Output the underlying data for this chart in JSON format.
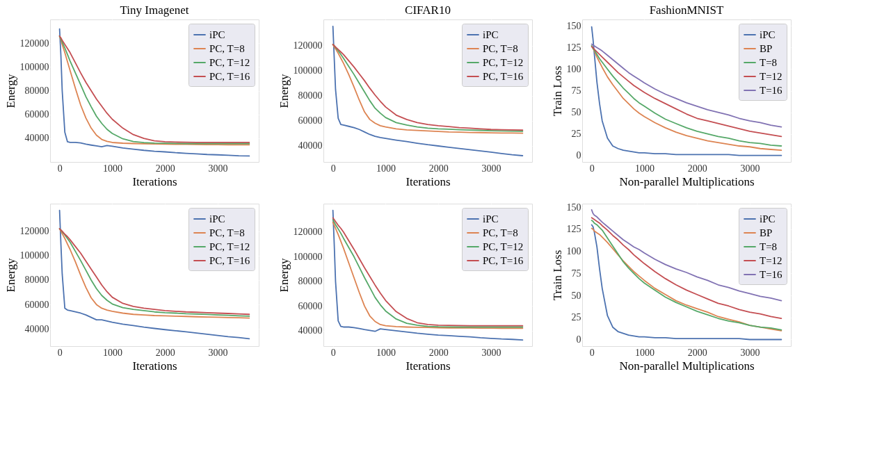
{
  "chart_data": [
    {
      "type": "line",
      "title": "Tiny Imagenet",
      "xlabel": "Iterations",
      "ylabel": "Energy",
      "grid": true,
      "legend": "top right",
      "line_style": "solid",
      "x": [
        0,
        25,
        50,
        100,
        150,
        200,
        300,
        400,
        500,
        600,
        700,
        800,
        900,
        1000,
        1200,
        1400,
        1600,
        1800,
        2000,
        2200,
        2400,
        2600,
        2800,
        3000,
        3200,
        3400,
        3600
      ],
      "xlim": [
        -180,
        3780
      ],
      "xticks": [
        0,
        1000,
        2000,
        3000
      ],
      "ylim": [
        20000,
        140000
      ],
      "yticks": [
        40000,
        60000,
        80000,
        100000,
        120000
      ],
      "series": [
        {
          "name": "iPC",
          "color": "#4c72b0",
          "values": [
            132000,
            110000,
            80000,
            45000,
            37000,
            36500,
            36500,
            36000,
            35000,
            34200,
            33500,
            32800,
            33800,
            33200,
            31800,
            30800,
            29800,
            29000,
            28500,
            27800,
            27300,
            26800,
            26300,
            26000,
            25600,
            25200,
            25000
          ]
        },
        {
          "name": "PC, T=8",
          "color": "#dd8452",
          "values": [
            126000,
            122500,
            119000,
            112000,
            104500,
            97000,
            82000,
            68000,
            57000,
            48500,
            42500,
            39000,
            37300,
            36400,
            35800,
            35500,
            35300,
            35100,
            35000,
            34900,
            34800,
            34700,
            34600,
            34600,
            34500,
            34500,
            34500
          ]
        },
        {
          "name": "PC, T=12",
          "color": "#55a868",
          "values": [
            126000,
            123500,
            121000,
            116000,
            110500,
            105000,
            95000,
            85000,
            75000,
            66500,
            58500,
            52500,
            47500,
            44000,
            39500,
            37200,
            36300,
            35900,
            35700,
            35600,
            35500,
            35500,
            35500,
            35500,
            35500,
            35500,
            35500
          ]
        },
        {
          "name": "PC, T=16",
          "color": "#c44e52",
          "values": [
            126000,
            124500,
            122500,
            119000,
            115500,
            112000,
            103500,
            95000,
            87000,
            80000,
            73000,
            67000,
            61000,
            56000,
            48500,
            43000,
            39800,
            37800,
            37000,
            36700,
            36600,
            36500,
            36500,
            36500,
            36500,
            36500,
            36500
          ]
        }
      ]
    },
    {
      "type": "line",
      "title": "CIFAR10",
      "xlabel": "Iterations",
      "ylabel": "Energy",
      "grid": true,
      "legend": "top right",
      "line_style": "solid",
      "x": [
        0,
        25,
        50,
        100,
        150,
        200,
        300,
        400,
        500,
        600,
        700,
        800,
        900,
        1000,
        1200,
        1400,
        1600,
        1800,
        2000,
        2200,
        2400,
        2600,
        2800,
        3000,
        3200,
        3400,
        3600
      ],
      "xlim": [
        -180,
        3780
      ],
      "xticks": [
        0,
        1000,
        2000,
        3000
      ],
      "ylim": [
        27000,
        141000
      ],
      "yticks": [
        40000,
        60000,
        80000,
        100000,
        120000
      ],
      "series": [
        {
          "name": "iPC",
          "color": "#4c72b0",
          "values": [
            135500,
            110000,
            85000,
            62000,
            57000,
            56500,
            55500,
            54500,
            53000,
            51000,
            49000,
            47500,
            46500,
            45800,
            44500,
            43300,
            42000,
            40800,
            39800,
            38800,
            37800,
            36800,
            35800,
            34800,
            33800,
            32800,
            32000
          ]
        },
        {
          "name": "PC, T=8",
          "color": "#dd8452",
          "values": [
            121000,
            119000,
            117500,
            114000,
            110000,
            106000,
            97000,
            87000,
            76500,
            67000,
            61000,
            58000,
            56000,
            55000,
            53500,
            52700,
            52200,
            51800,
            51400,
            51000,
            50800,
            50600,
            50500,
            50300,
            50200,
            50100,
            50000
          ]
        },
        {
          "name": "PC, T=12",
          "color": "#55a868",
          "values": [
            121000,
            120000,
            118500,
            116000,
            113000,
            110000,
            103500,
            97000,
            90000,
            83000,
            76000,
            70000,
            66000,
            62500,
            58500,
            56500,
            55000,
            54000,
            53500,
            53200,
            52800,
            52500,
            52300,
            52000,
            51800,
            51700,
            51500
          ]
        },
        {
          "name": "PC, T=16",
          "color": "#c44e52",
          "values": [
            121000,
            120000,
            119000,
            117000,
            115000,
            113000,
            108000,
            103000,
            97500,
            92000,
            86000,
            80500,
            75500,
            71000,
            64500,
            61000,
            58500,
            57000,
            56000,
            55300,
            54500,
            54000,
            53500,
            53000,
            52800,
            52700,
            52500
          ]
        }
      ]
    },
    {
      "type": "line",
      "title": "FashionMNIST",
      "xlabel": "Non-parallel Multiplications",
      "ylabel": "Train Loss",
      "grid": true,
      "legend": "top right",
      "line_style": "solid",
      "x": [
        0,
        25,
        50,
        100,
        150,
        200,
        300,
        400,
        500,
        600,
        700,
        800,
        900,
        1000,
        1200,
        1400,
        1600,
        1800,
        2000,
        2200,
        2400,
        2600,
        2800,
        3000,
        3200,
        3400,
        3600
      ],
      "xlim": [
        -180,
        3780
      ],
      "xticks": [
        0,
        1000,
        2000,
        3000
      ],
      "ylim": [
        -7.5,
        157.5
      ],
      "yticks": [
        0,
        25,
        50,
        75,
        100,
        125,
        150
      ],
      "series": [
        {
          "name": "iPC",
          "color": "#4c72b0",
          "values": [
            149,
            135,
            118,
            85,
            60,
            40,
            20,
            11,
            8,
            6,
            5,
            4,
            3,
            3,
            2,
            2,
            1,
            1,
            1,
            1,
            1,
            1,
            0,
            0,
            0,
            0,
            0
          ]
        },
        {
          "name": "BP",
          "color": "#dd8452",
          "values": [
            127,
            124,
            121,
            114,
            108,
            102,
            91,
            82,
            74,
            66,
            60,
            54,
            49,
            45,
            38,
            32,
            27,
            23,
            20,
            17,
            15,
            13,
            11,
            10,
            8,
            7,
            6
          ]
        },
        {
          "name": "T=8",
          "color": "#55a868",
          "values": [
            127,
            124,
            122,
            117,
            112,
            108,
            100,
            92,
            85,
            78,
            72,
            66,
            61,
            57,
            49,
            42,
            37,
            32,
            28,
            25,
            22,
            20,
            17,
            15,
            14,
            12,
            11
          ]
        },
        {
          "name": "T=12",
          "color": "#c44e52",
          "values": [
            126,
            125,
            123,
            120,
            117,
            114,
            108,
            102,
            96,
            91,
            86,
            81,
            77,
            73,
            66,
            60,
            54,
            48,
            43,
            40,
            37,
            34,
            31,
            28,
            26,
            24,
            22
          ]
        },
        {
          "name": "T=16",
          "color": "#8172b3",
          "values": [
            129,
            128,
            127,
            125,
            123,
            121,
            116,
            111,
            106,
            101,
            96,
            92,
            88,
            84,
            77,
            71,
            66,
            61,
            57,
            53,
            50,
            47,
            43,
            40,
            38,
            35,
            33
          ]
        }
      ]
    },
    {
      "type": "line",
      "xlabel": "Iterations",
      "ylabel": "Energy",
      "grid": true,
      "legend": "top right",
      "line_style": "solid",
      "x": [
        0,
        25,
        50,
        100,
        150,
        200,
        300,
        400,
        500,
        600,
        700,
        800,
        900,
        1000,
        1200,
        1400,
        1600,
        1800,
        2000,
        2200,
        2400,
        2600,
        2800,
        3000,
        3200,
        3400,
        3600
      ],
      "xlim": [
        -180,
        3780
      ],
      "xticks": [
        0,
        1000,
        2000,
        3000
      ],
      "ylim": [
        26000,
        142500
      ],
      "yticks": [
        40000,
        60000,
        80000,
        100000,
        120000
      ],
      "series": [
        {
          "name": "iPC",
          "color": "#4c72b0",
          "values": [
            137000,
            110000,
            85000,
            57000,
            55500,
            55000,
            54000,
            53000,
            51500,
            49500,
            47500,
            47500,
            46500,
            45500,
            44000,
            42800,
            41500,
            40500,
            39500,
            38600,
            37700,
            36700,
            35700,
            34700,
            33700,
            33000,
            32000
          ]
        },
        {
          "name": "PC, T=8",
          "color": "#dd8452",
          "values": [
            122000,
            120000,
            118000,
            114000,
            109500,
            105000,
            95000,
            84000,
            74000,
            65500,
            60000,
            57000,
            55500,
            54500,
            53000,
            52000,
            51500,
            51000,
            50800,
            50500,
            50300,
            50000,
            49800,
            49600,
            49400,
            49200,
            49000
          ]
        },
        {
          "name": "PC, T=12",
          "color": "#55a868",
          "values": [
            122000,
            121000,
            119500,
            117000,
            114000,
            111000,
            103500,
            96000,
            88000,
            80000,
            73000,
            67500,
            63500,
            60500,
            57500,
            56000,
            55000,
            54000,
            53300,
            53000,
            52500,
            52200,
            51900,
            51500,
            51200,
            50800,
            50500
          ]
        },
        {
          "name": "PC, T=16",
          "color": "#c44e52",
          "values": [
            122000,
            121000,
            120000,
            117500,
            115500,
            113000,
            107500,
            102000,
            95500,
            89000,
            82500,
            76000,
            70500,
            66000,
            61000,
            58500,
            57000,
            56000,
            55000,
            54500,
            54000,
            53700,
            53300,
            53000,
            52700,
            52300,
            52000
          ]
        }
      ]
    },
    {
      "type": "line",
      "xlabel": "Iterations",
      "ylabel": "Energy",
      "grid": true,
      "legend": "top right",
      "line_style": "solid",
      "x": [
        0,
        25,
        50,
        100,
        150,
        200,
        300,
        400,
        500,
        600,
        700,
        800,
        900,
        1000,
        1200,
        1400,
        1600,
        1800,
        2000,
        2200,
        2400,
        2600,
        2800,
        3000,
        3200,
        3400,
        3600
      ],
      "xlim": [
        -180,
        3780
      ],
      "xticks": [
        0,
        1000,
        2000,
        3000
      ],
      "ylim": [
        27500,
        143000
      ],
      "yticks": [
        40000,
        60000,
        80000,
        100000,
        120000
      ],
      "series": [
        {
          "name": "iPC",
          "color": "#4c72b0",
          "values": [
            137500,
            110000,
            80000,
            48000,
            43500,
            43000,
            43000,
            42500,
            41800,
            41000,
            40300,
            39500,
            41500,
            41000,
            40000,
            39000,
            38000,
            37200,
            36500,
            36000,
            35500,
            35000,
            34300,
            33800,
            33300,
            33000,
            32500
          ]
        },
        {
          "name": "PC, T=8",
          "color": "#dd8452",
          "values": [
            128000,
            125500,
            123000,
            118000,
            112500,
            107000,
            95000,
            83000,
            71000,
            60000,
            52000,
            47500,
            45000,
            44000,
            43300,
            43000,
            42800,
            42600,
            42400,
            42300,
            42200,
            42200,
            42100,
            42100,
            42000,
            42000,
            42000
          ]
        },
        {
          "name": "PC, T=12",
          "color": "#55a868",
          "values": [
            130000,
            128000,
            126000,
            122500,
            119000,
            115000,
            107500,
            100000,
            91500,
            83000,
            75000,
            67000,
            61000,
            56000,
            49500,
            46000,
            44500,
            43500,
            43200,
            43100,
            43000,
            43000,
            43000,
            43000,
            43000,
            43000,
            43000
          ]
        },
        {
          "name": "PC, T=16",
          "color": "#c44e52",
          "values": [
            131500,
            130000,
            128500,
            125500,
            123000,
            120000,
            113000,
            106000,
            98500,
            91000,
            84000,
            77000,
            70500,
            64500,
            55500,
            50000,
            46500,
            45000,
            44500,
            44300,
            44200,
            44100,
            44100,
            44000,
            44000,
            44000,
            44000
          ]
        }
      ]
    },
    {
      "type": "line",
      "xlabel": "Non-parallel Multiplications",
      "ylabel": "Train Loss",
      "grid": true,
      "legend": "top right",
      "line_style": "solid",
      "x": [
        0,
        25,
        50,
        100,
        150,
        200,
        300,
        400,
        500,
        600,
        700,
        800,
        900,
        1000,
        1200,
        1400,
        1600,
        1800,
        2000,
        2200,
        2400,
        2600,
        2800,
        3000,
        3200,
        3400,
        3600
      ],
      "xlim": [
        -180,
        3780
      ],
      "xticks": [
        0,
        1000,
        2000,
        3000
      ],
      "ylim": [
        -7.5,
        154
      ],
      "yticks": [
        0,
        25,
        50,
        75,
        100,
        125,
        150
      ],
      "series": [
        {
          "name": "iPC",
          "color": "#4c72b0",
          "values": [
            130,
            128,
            122,
            105,
            80,
            58,
            27,
            14,
            9,
            7,
            5,
            4,
            3,
            3,
            2,
            2,
            1,
            1,
            1,
            1,
            1,
            1,
            1,
            0,
            0,
            0,
            0
          ]
        },
        {
          "name": "BP",
          "color": "#dd8452",
          "values": [
            126,
            125,
            123,
            121,
            119,
            116,
            110,
            103,
            96,
            89,
            83,
            77,
            72,
            67,
            58,
            51,
            44,
            39,
            35,
            31,
            26,
            23,
            20,
            16,
            14,
            12,
            10
          ]
        },
        {
          "name": "T=8",
          "color": "#55a868",
          "values": [
            135,
            134,
            132,
            130,
            127,
            124,
            115,
            106,
            97,
            88,
            81,
            75,
            69,
            64,
            56,
            48,
            42,
            37,
            32,
            28,
            24,
            21,
            19,
            16,
            14,
            13,
            11
          ]
        },
        {
          "name": "T=12",
          "color": "#c44e52",
          "values": [
            138,
            137,
            136,
            134,
            132,
            129,
            124,
            118,
            113,
            107,
            102,
            96,
            91,
            86,
            77,
            69,
            62,
            56,
            51,
            46,
            41,
            38,
            34,
            31,
            29,
            26,
            24
          ]
        },
        {
          "name": "T=16",
          "color": "#8172b3",
          "values": [
            147,
            143,
            141,
            139,
            136,
            133,
            128,
            123,
            118,
            113,
            109,
            105,
            102,
            98,
            91,
            85,
            80,
            76,
            71,
            67,
            62,
            59,
            55,
            52,
            49,
            47,
            44
          ]
        }
      ]
    }
  ]
}
